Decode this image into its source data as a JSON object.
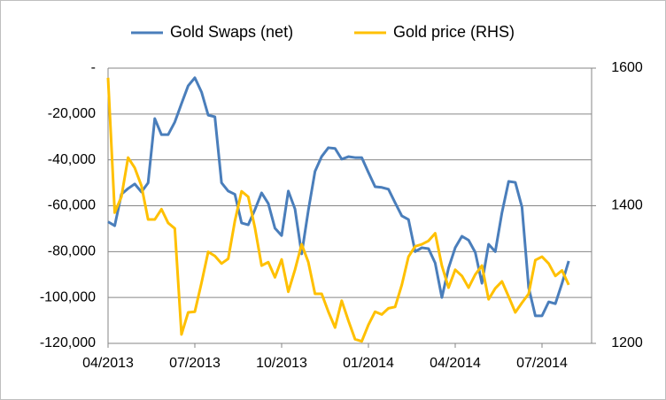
{
  "chart_data": {
    "type": "line",
    "categories": [
      "04/2013",
      null,
      null,
      null,
      null,
      null,
      null,
      null,
      null,
      null,
      null,
      null,
      null,
      "07/2013",
      null,
      null,
      null,
      null,
      null,
      null,
      null,
      null,
      null,
      null,
      null,
      null,
      "10/2013",
      null,
      null,
      null,
      null,
      null,
      null,
      null,
      null,
      null,
      null,
      null,
      null,
      "01/2014",
      null,
      null,
      null,
      null,
      null,
      null,
      null,
      null,
      null,
      null,
      null,
      null,
      "04/2014",
      null,
      null,
      null,
      null,
      null,
      null,
      null,
      null,
      null,
      null,
      null,
      null,
      "07/2014",
      null,
      null,
      null,
      null
    ],
    "series": [
      {
        "name": "Gold Swaps (net)",
        "color": "#4a7ebb",
        "values": [
          -67000,
          -68700,
          -55000,
          -52500,
          -50500,
          -54000,
          -50000,
          -22000,
          -29000,
          -29000,
          -23500,
          -15500,
          -7700,
          -4200,
          -10400,
          -20500,
          -21200,
          -50000,
          -53600,
          -55000,
          -67500,
          -68300,
          -61700,
          -54400,
          -59000,
          -69800,
          -73000,
          -53600,
          -61400,
          -81000,
          -62000,
          -45000,
          -38500,
          -34700,
          -35000,
          -39700,
          -38600,
          -39000,
          -39000,
          -45500,
          -51700,
          -52000,
          -52800,
          -58700,
          -64400,
          -66000,
          -80000,
          -78300,
          -78700,
          -85000,
          -100000,
          -87200,
          -78300,
          -73300,
          -75000,
          -80300,
          -93800,
          -76800,
          -80000,
          -63000,
          -49400,
          -49800,
          -60600,
          -95700,
          -108000,
          -108000,
          -101900,
          -102700,
          -93800,
          -84100
        ]
      },
      {
        "name": "Gold price (RHS)",
        "color": "#ffc000",
        "axis": "y2",
        "values": [
          1586,
          1390,
          1413,
          1470,
          1455,
          1429,
          1380,
          1380,
          1395,
          1375,
          1367,
          1213,
          1245,
          1246,
          1288,
          1333,
          1327,
          1316,
          1323,
          1378,
          1421,
          1413,
          1368,
          1313,
          1318,
          1296,
          1322,
          1275,
          1307,
          1344,
          1318,
          1272,
          1272,
          1246,
          1223,
          1262,
          1233,
          1206,
          1203,
          1227,
          1246,
          1242,
          1251,
          1253,
          1285,
          1326,
          1341,
          1344,
          1349,
          1360,
          1313,
          1281,
          1307,
          1298,
          1281,
          1300,
          1313,
          1264,
          1280,
          1290,
          1268,
          1245,
          1259,
          1272,
          1321,
          1326,
          1316,
          1298,
          1306,
          1285
        ]
      }
    ],
    "ylim": [
      -120000,
      0
    ],
    "yticks": [
      {
        "value": -120000,
        "label": "-120,000"
      },
      {
        "value": -100000,
        "label": "-100,000"
      },
      {
        "value": -80000,
        "label": "-80,000"
      },
      {
        "value": -60000,
        "label": "-60,000"
      },
      {
        "value": -40000,
        "label": "-40,000"
      },
      {
        "value": -20000,
        "label": "-20,000"
      },
      {
        "value": 0,
        "label": "-"
      }
    ],
    "y2lim": [
      1200,
      1600
    ],
    "y2ticks": [
      1200,
      1400,
      1600
    ],
    "grid": true
  }
}
